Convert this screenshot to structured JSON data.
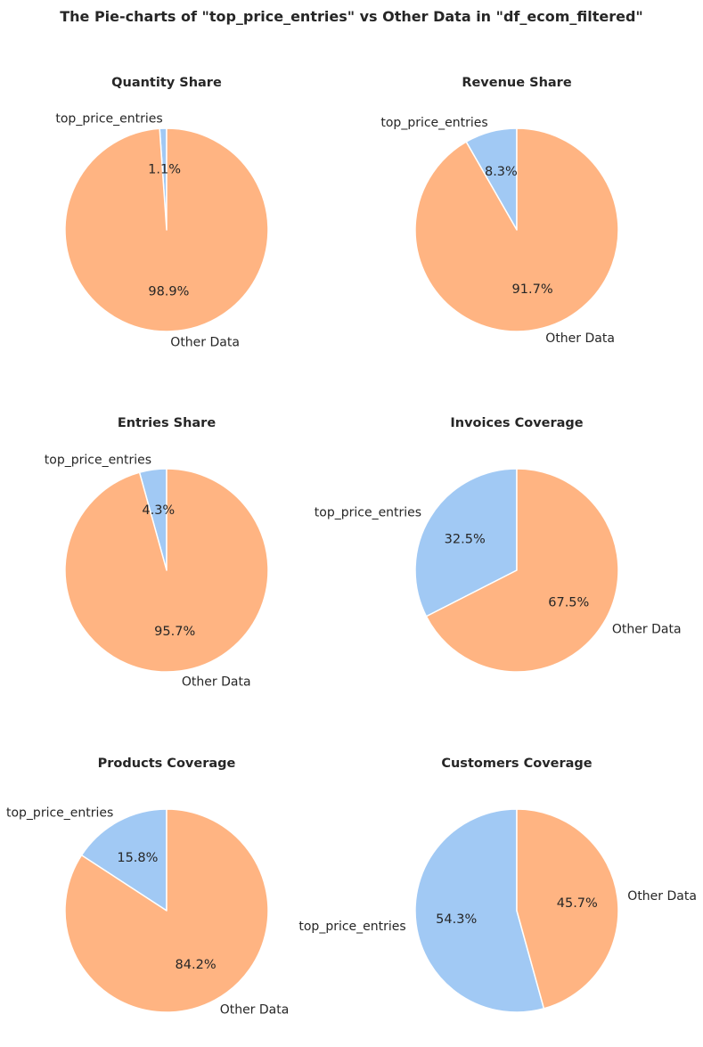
{
  "figure_title": "The Pie-charts of \"top_price_entries\" vs Other Data in \"df_ecom_filtered\"",
  "colors": {
    "top_price_entries": "#a1c9f4",
    "other_data": "#ffb482"
  },
  "chart_data": [
    {
      "type": "pie",
      "title": "Quantity Share",
      "labels": [
        "top_price_entries",
        "Other Data"
      ],
      "values": [
        1.1,
        98.9
      ],
      "autopct": [
        "1.1%",
        "98.9%"
      ],
      "startangle": 90,
      "direction": "counterclockwise"
    },
    {
      "type": "pie",
      "title": "Revenue Share",
      "labels": [
        "top_price_entries",
        "Other Data"
      ],
      "values": [
        8.3,
        91.7
      ],
      "autopct": [
        "8.3%",
        "91.7%"
      ],
      "startangle": 90,
      "direction": "counterclockwise"
    },
    {
      "type": "pie",
      "title": "Entries Share",
      "labels": [
        "top_price_entries",
        "Other Data"
      ],
      "values": [
        4.3,
        95.7
      ],
      "autopct": [
        "4.3%",
        "95.7%"
      ],
      "startangle": 90,
      "direction": "counterclockwise"
    },
    {
      "type": "pie",
      "title": "Invoices Coverage",
      "labels": [
        "top_price_entries",
        "Other Data"
      ],
      "values": [
        32.5,
        67.5
      ],
      "autopct": [
        "32.5%",
        "67.5%"
      ],
      "startangle": 90,
      "direction": "counterclockwise"
    },
    {
      "type": "pie",
      "title": "Products Coverage",
      "labels": [
        "top_price_entries",
        "Other Data"
      ],
      "values": [
        15.8,
        84.2
      ],
      "autopct": [
        "15.8%",
        "84.2%"
      ],
      "startangle": 90,
      "direction": "counterclockwise"
    },
    {
      "type": "pie",
      "title": "Customers Coverage",
      "labels": [
        "top_price_entries",
        "Other Data"
      ],
      "values": [
        54.3,
        45.7
      ],
      "autopct": [
        "54.3%",
        "45.7%"
      ],
      "startangle": 90,
      "direction": "counterclockwise"
    }
  ]
}
